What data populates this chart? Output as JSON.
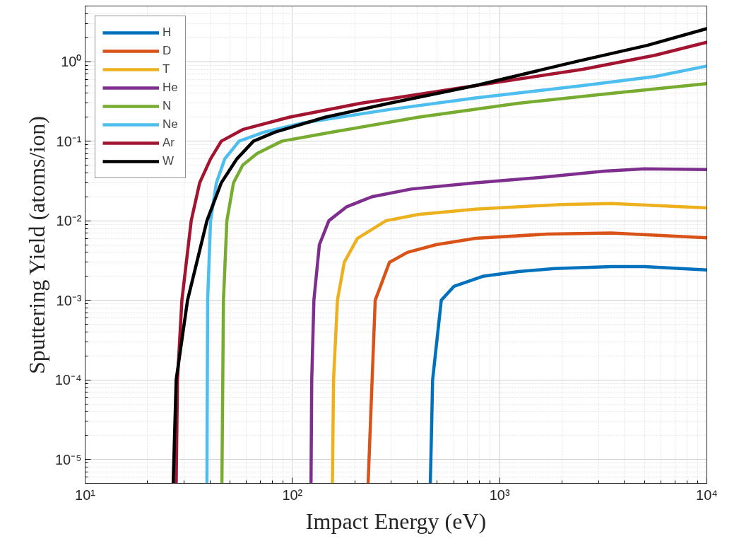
{
  "chart_data": {
    "type": "line",
    "xlabel": "Impact Energy (eV)",
    "ylabel": "Sputtering Yield (atoms/ion)",
    "log": "xy",
    "grid": true,
    "legend": "top left",
    "line_style": "solid",
    "marker": "none",
    "xlim": [
      10,
      10000
    ],
    "xticks": [
      {
        "value": 10,
        "label": "10¹"
      },
      {
        "value": 100,
        "label": "10²"
      },
      {
        "value": 1000,
        "label": "10³"
      },
      {
        "value": 10000,
        "label": "10⁴"
      }
    ],
    "ylim": [
      5e-06,
      5
    ],
    "yticks": [
      {
        "value": 1e-05,
        "label": "10⁻⁵"
      },
      {
        "value": 0.0001,
        "label": "10⁻⁴"
      },
      {
        "value": 0.001,
        "label": "10⁻³"
      },
      {
        "value": 0.01,
        "label": "10⁻²"
      },
      {
        "value": 0.1,
        "label": "10⁻¹"
      },
      {
        "value": 1,
        "label": "10⁰"
      }
    ],
    "series": [
      {
        "name": "H",
        "color": "#0072bd",
        "x": [
          463,
          466,
          475,
          523,
          603,
          828,
          1233,
          1837,
          3467,
          5000,
          10000
        ],
        "values": [
          5e-06,
          1e-05,
          0.0001,
          0.001,
          0.0015,
          0.002,
          0.0023,
          0.0025,
          0.00265,
          0.00265,
          0.0024
        ]
      },
      {
        "name": "D",
        "color": "#d95319",
        "x": [
          232,
          251,
          294,
          359,
          494,
          765,
          1700,
          3467,
          10000
        ],
        "values": [
          5e-06,
          0.001,
          0.003,
          0.004,
          0.005,
          0.006,
          0.0068,
          0.007,
          0.0061
        ]
      },
      {
        "name": "T",
        "color": "#edb120",
        "x": [
          156,
          158,
          165,
          178,
          206,
          283,
          405,
          765,
          1990,
          3467,
          10000
        ],
        "values": [
          5e-06,
          0.0001,
          0.001,
          0.003,
          0.006,
          0.01,
          0.012,
          0.014,
          0.016,
          0.0165,
          0.0145
        ]
      },
      {
        "name": "He",
        "color": "#7e2f8e",
        "x": [
          123,
          124,
          127,
          135,
          150,
          183,
          242,
          374,
          765,
          1567,
          3206,
          5000,
          10000
        ],
        "values": [
          5e-06,
          0.0001,
          0.001,
          0.005,
          0.01,
          0.015,
          0.02,
          0.025,
          0.03,
          0.035,
          0.042,
          0.045,
          0.044
        ]
      },
      {
        "name": "N",
        "color": "#77ac30",
        "x": [
          45.7,
          46.5,
          48.3,
          52,
          57.6,
          67.6,
          89,
          156,
          405,
          1233,
          3467,
          10000
        ],
        "values": [
          5e-06,
          0.001,
          0.01,
          0.03,
          0.05,
          0.07,
          0.1,
          0.13,
          0.2,
          0.3,
          0.4,
          0.53
        ]
      },
      {
        "name": "Ne",
        "color": "#4dbeee",
        "x": [
          38.7,
          39,
          40.3,
          43,
          47.2,
          55.3,
          73,
          113,
          294,
          765,
          2520,
          5600,
          10000
        ],
        "values": [
          5e-06,
          0.001,
          0.01,
          0.03,
          0.06,
          0.1,
          0.13,
          0.17,
          0.25,
          0.35,
          0.5,
          0.65,
          0.88
        ]
      },
      {
        "name": "Ar",
        "color": "#a2142f",
        "x": [
          27.5,
          27.9,
          29.3,
          32.5,
          35.7,
          40.3,
          45.4,
          57.6,
          96.6,
          214,
          765,
          2520,
          5600,
          10000
        ],
        "values": [
          5e-06,
          0.0001,
          0.001,
          0.01,
          0.03,
          0.06,
          0.1,
          0.14,
          0.2,
          0.3,
          0.5,
          0.8,
          1.2,
          1.75
        ]
      },
      {
        "name": "W",
        "color": "#000000",
        "x": [
          26.6,
          27.5,
          31.2,
          38.7,
          45.4,
          54,
          64.9,
          82.4,
          144,
          294,
          765,
          2335,
          5160,
          10000
        ],
        "values": [
          5e-06,
          0.0001,
          0.001,
          0.01,
          0.03,
          0.06,
          0.1,
          0.13,
          0.2,
          0.3,
          0.5,
          1.0,
          1.6,
          2.6
        ]
      }
    ]
  }
}
